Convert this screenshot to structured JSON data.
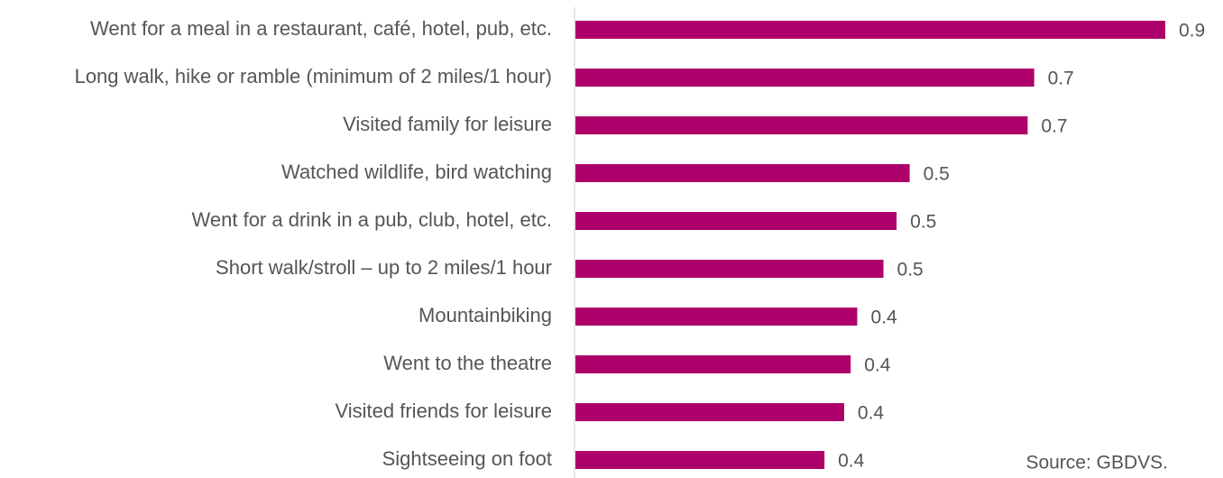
{
  "chart_data": {
    "type": "bar",
    "orientation": "horizontal",
    "categories": [
      "Went for a meal in a restaurant, café, hotel, pub, etc.",
      "Long walk, hike or ramble (minimum of 2 miles/1 hour)",
      "Visited family for leisure",
      "Watched wildlife, bird watching",
      "Went for a drink in a pub, club, hotel, etc.",
      "Short walk/stroll – up to 2 miles/1 hour",
      "Mountainbiking",
      "Went to the theatre",
      "Visited friends for leisure",
      "Sightseeing on foot"
    ],
    "values": [
      0.9,
      0.7,
      0.69,
      0.51,
      0.49,
      0.47,
      0.43,
      0.42,
      0.41,
      0.38
    ],
    "value_labels": [
      "0.9",
      "0.7",
      "0.7",
      "0.5",
      "0.5",
      "0.5",
      "0.4",
      "0.4",
      "0.4",
      "0.4"
    ],
    "color": "#ad006a",
    "source": "Source: GBDVS."
  }
}
